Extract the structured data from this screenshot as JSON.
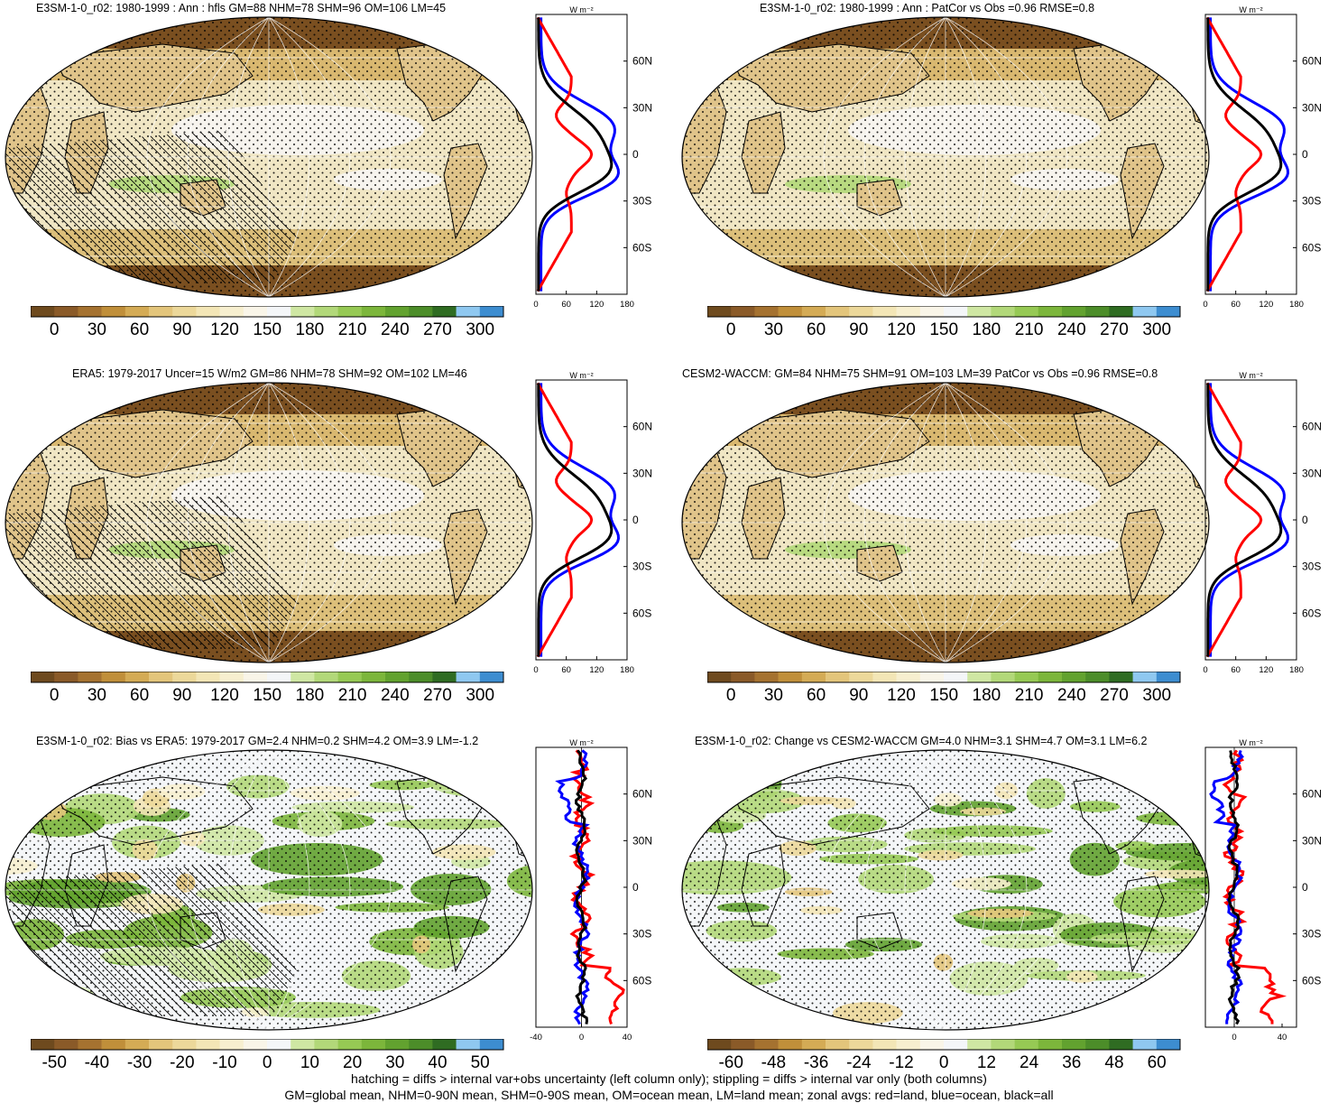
{
  "colors": {
    "scale": [
      "#6e4a1e",
      "#8a5a28",
      "#a57230",
      "#c08f3a",
      "#d4ab55",
      "#e3c57b",
      "#ecd89a",
      "#f3e6b6",
      "#f7efcf",
      "#f9f5e8",
      "#f4f6f8",
      "#cfe7a3",
      "#b2d879",
      "#96c954",
      "#7cb63b",
      "#62a22f",
      "#4c8d29",
      "#2f6c22",
      "#8fc8f0",
      "#3d8dd0"
    ],
    "land": "#e0c48a",
    "ocean": "#f0e6c4",
    "red": "#ff0000",
    "blue": "#0000ff",
    "black": "#000000"
  },
  "panels": [
    {
      "id": "p1",
      "title": "E3SM-1-0_r02: 1980-1999 : Ann : hfls GM=88 NHM=78 SHM=96 OM=106 LM=45",
      "cb_labels": [
        "0",
        "30",
        "60",
        "90",
        "120",
        "150",
        "180",
        "210",
        "240",
        "270",
        "300"
      ],
      "zonal_units": "W m⁻²",
      "zonal_xticks": [
        "0",
        "60",
        "120",
        "180"
      ],
      "lat_labels": [
        "60N",
        "30N",
        "0",
        "30S",
        "60S"
      ],
      "hatched": true,
      "kind": "field"
    },
    {
      "id": "p2",
      "title": "E3SM-1-0_r02: 1980-1999 : Ann : PatCor vs Obs =0.96 RMSE=0.8",
      "cb_labels": [
        "0",
        "30",
        "60",
        "90",
        "120",
        "150",
        "180",
        "210",
        "240",
        "270",
        "300"
      ],
      "zonal_units": "W m⁻²",
      "zonal_xticks": [
        "0",
        "60",
        "120",
        "180"
      ],
      "lat_labels": [
        "60N",
        "30N",
        "0",
        "30S",
        "60S"
      ],
      "hatched": false,
      "kind": "field"
    },
    {
      "id": "p3",
      "title": "ERA5: 1979-2017 Uncer=15 W/m2 GM=86 NHM=78 SHM=92 OM=102 LM=46",
      "cb_labels": [
        "0",
        "30",
        "60",
        "90",
        "120",
        "150",
        "180",
        "210",
        "240",
        "270",
        "300"
      ],
      "zonal_units": "W m⁻²",
      "zonal_xticks": [
        "0",
        "60",
        "120",
        "180"
      ],
      "lat_labels": [
        "60N",
        "30N",
        "0",
        "30S",
        "60S"
      ],
      "hatched": true,
      "kind": "field"
    },
    {
      "id": "p4",
      "title": "CESM2-WACCM: GM=84 NHM=75 SHM=91 OM=103 LM=39 PatCor vs Obs =0.96 RMSE=0.8",
      "cb_labels": [
        "0",
        "30",
        "60",
        "90",
        "120",
        "150",
        "180",
        "210",
        "240",
        "270",
        "300"
      ],
      "zonal_units": "W m⁻²",
      "zonal_xticks": [
        "0",
        "60",
        "120",
        "180"
      ],
      "lat_labels": [
        "60N",
        "30N",
        "0",
        "30S",
        "60S"
      ],
      "hatched": false,
      "kind": "field"
    },
    {
      "id": "p5",
      "title": "E3SM-1-0_r02: Bias vs ERA5: 1979-2017 GM=2.4 NHM=0.2 SHM=4.2 OM=3.9 LM=-1.2",
      "cb_labels": [
        "-50",
        "-40",
        "-30",
        "-20",
        "-10",
        "0",
        "10",
        "20",
        "30",
        "40",
        "50"
      ],
      "zonal_units": "W m⁻²",
      "zonal_xticks": [
        "-40",
        "0",
        "40"
      ],
      "lat_labels": [
        "60N",
        "30N",
        "0",
        "30S",
        "60S"
      ],
      "hatched": true,
      "kind": "diff"
    },
    {
      "id": "p6",
      "title": "E3SM-1-0_r02: Change vs CESM2-WACCM GM=4.0 NHM=3.1 SHM=4.7 OM=3.1 LM=6.2",
      "cb_labels": [
        "-60",
        "-48",
        "-36",
        "-24",
        "-12",
        "0",
        "12",
        "24",
        "36",
        "48",
        "60"
      ],
      "zonal_units": "W m⁻²",
      "zonal_xticks": [
        "0",
        "40"
      ],
      "lat_labels": [
        "60N",
        "30N",
        "0",
        "30S",
        "60S"
      ],
      "hatched": false,
      "kind": "diff"
    }
  ],
  "footer": {
    "line1": "hatching = diffs > internal var+obs uncertainty (left column only); stippling = diffs > internal var only (both columns)",
    "line2": "GM=global mean, NHM=0-90N mean, SHM=0-90S mean, OM=ocean mean, LM=land mean; zonal avgs: red=land, blue=ocean, black=all"
  }
}
